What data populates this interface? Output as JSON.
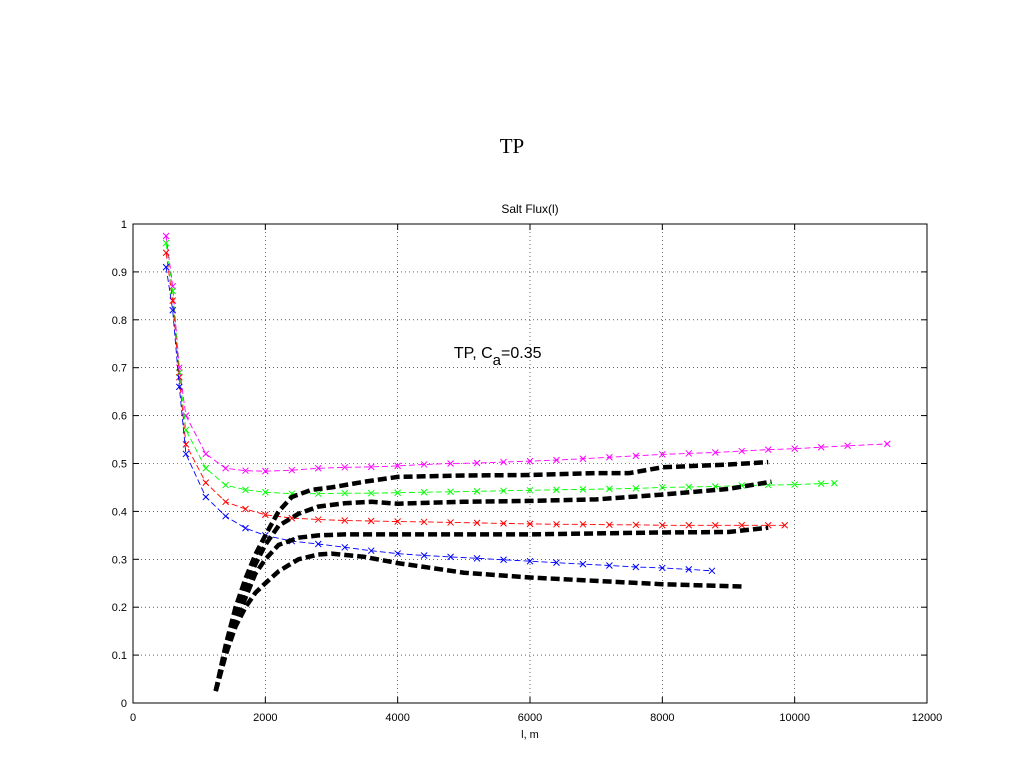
{
  "page_title": "TP",
  "chart_data": {
    "type": "line",
    "title": "Salt Flux(l)",
    "xlabel": "l, m",
    "ylabel": "",
    "xlim": [
      0,
      12000
    ],
    "ylim": [
      0,
      1
    ],
    "xticks": [
      0,
      2000,
      4000,
      6000,
      8000,
      10000,
      12000
    ],
    "yticks": [
      0,
      0.1,
      0.2,
      0.3,
      0.4,
      0.5,
      0.6,
      0.7,
      0.8,
      0.9,
      1
    ],
    "xtick_labels": [
      "0",
      "2000",
      "4000",
      "6000",
      "8000",
      "10000",
      "12000"
    ],
    "ytick_labels": [
      "0",
      "0.1",
      "0.2",
      "0.3",
      "0.4",
      "0.5",
      "0.6",
      "0.7",
      "0.8",
      "0.9",
      "1"
    ],
    "grid": true,
    "annotation": {
      "prefix": "TP,  C",
      "subscript": "a",
      "suffix": "=0.35",
      "x": 5000,
      "y": 0.72
    },
    "series": [
      {
        "color": "#ff00ff",
        "style": "dashed-x",
        "x": [
          500,
          600,
          700,
          800,
          1100,
          1400,
          1700,
          2000,
          2400,
          2800,
          3200,
          3600,
          4000,
          4400,
          4800,
          5200,
          5600,
          6000,
          6400,
          6800,
          7200,
          7600,
          8000,
          8400,
          8800,
          9200,
          9600,
          10000,
          10400,
          10800,
          11400
        ],
        "y": [
          0.975,
          0.87,
          0.7,
          0.6,
          0.52,
          0.49,
          0.485,
          0.484,
          0.486,
          0.49,
          0.492,
          0.493,
          0.495,
          0.498,
          0.5,
          0.501,
          0.503,
          0.505,
          0.507,
          0.51,
          0.513,
          0.516,
          0.519,
          0.521,
          0.523,
          0.526,
          0.529,
          0.531,
          0.534,
          0.537,
          0.541
        ]
      },
      {
        "color": "#00ff00",
        "style": "dashed-x",
        "x": [
          500,
          600,
          700,
          800,
          1100,
          1400,
          1700,
          2000,
          2400,
          2800,
          3200,
          3600,
          4000,
          4400,
          4800,
          5200,
          5600,
          6000,
          6400,
          6800,
          7200,
          7600,
          8000,
          8400,
          8800,
          9200,
          9600,
          10000,
          10400,
          10600
        ],
        "y": [
          0.96,
          0.86,
          0.69,
          0.57,
          0.49,
          0.455,
          0.445,
          0.44,
          0.437,
          0.437,
          0.438,
          0.438,
          0.439,
          0.44,
          0.441,
          0.442,
          0.443,
          0.444,
          0.445,
          0.446,
          0.447,
          0.448,
          0.45,
          0.451,
          0.452,
          0.454,
          0.455,
          0.456,
          0.458,
          0.459
        ]
      },
      {
        "color": "#ff0000",
        "style": "dashed-x",
        "x": [
          500,
          600,
          700,
          800,
          1100,
          1400,
          1700,
          2000,
          2400,
          2800,
          3200,
          3600,
          4000,
          4400,
          4800,
          5200,
          5600,
          6000,
          6400,
          6800,
          7200,
          7600,
          8000,
          8400,
          8800,
          9200,
          9600,
          9850
        ],
        "y": [
          0.94,
          0.84,
          0.68,
          0.54,
          0.46,
          0.42,
          0.405,
          0.393,
          0.386,
          0.383,
          0.381,
          0.38,
          0.379,
          0.378,
          0.377,
          0.376,
          0.375,
          0.374,
          0.373,
          0.373,
          0.372,
          0.372,
          0.371,
          0.371,
          0.371,
          0.371,
          0.371,
          0.371
        ]
      },
      {
        "color": "#0000ff",
        "style": "dashed-x",
        "x": [
          500,
          600,
          700,
          800,
          1100,
          1400,
          1700,
          2000,
          2400,
          2800,
          3200,
          3600,
          4000,
          4400,
          4800,
          5200,
          5600,
          6000,
          6400,
          6800,
          7200,
          7600,
          8000,
          8400,
          8750
        ],
        "y": [
          0.91,
          0.82,
          0.66,
          0.52,
          0.43,
          0.39,
          0.365,
          0.35,
          0.338,
          0.332,
          0.325,
          0.318,
          0.312,
          0.308,
          0.305,
          0.302,
          0.299,
          0.296,
          0.293,
          0.29,
          0.287,
          0.284,
          0.282,
          0.279,
          0.276
        ]
      },
      {
        "color": "#000000",
        "style": "thick-dashed",
        "x": [
          1250,
          1400,
          1550,
          1700,
          1850,
          2000,
          2200,
          2400,
          2700,
          3000,
          3500,
          4000,
          5000,
          6000,
          7000,
          7500,
          8000,
          9000,
          9600
        ],
        "y": [
          0.025,
          0.12,
          0.2,
          0.26,
          0.31,
          0.35,
          0.4,
          0.43,
          0.445,
          0.45,
          0.462,
          0.472,
          0.475,
          0.476,
          0.48,
          0.48,
          0.492,
          0.498,
          0.503
        ]
      },
      {
        "color": "#000000",
        "style": "thick-dashed",
        "x": [
          1250,
          1400,
          1550,
          1700,
          1850,
          2000,
          2200,
          2500,
          2800,
          3200,
          3600,
          4000,
          5000,
          6000,
          7000,
          8000,
          9000,
          9650
        ],
        "y": [
          0.025,
          0.11,
          0.18,
          0.24,
          0.29,
          0.33,
          0.37,
          0.395,
          0.41,
          0.417,
          0.42,
          0.416,
          0.42,
          0.422,
          0.425,
          0.435,
          0.447,
          0.462
        ]
      },
      {
        "color": "#000000",
        "style": "thick-dashed",
        "x": [
          1250,
          1400,
          1550,
          1700,
          1850,
          2000,
          2200,
          2500,
          2800,
          3200,
          4000,
          5000,
          6000,
          7000,
          8000,
          9000,
          9600
        ],
        "y": [
          0.025,
          0.1,
          0.17,
          0.22,
          0.27,
          0.3,
          0.33,
          0.345,
          0.35,
          0.352,
          0.352,
          0.352,
          0.352,
          0.354,
          0.356,
          0.357,
          0.366
        ]
      },
      {
        "color": "#000000",
        "style": "thick-dashed",
        "x": [
          1250,
          1400,
          1550,
          1700,
          1850,
          2000,
          2200,
          2500,
          2800,
          3000,
          3500,
          4000,
          5000,
          6000,
          7000,
          8000,
          8500,
          9250
        ],
        "y": [
          0.025,
          0.1,
          0.16,
          0.2,
          0.23,
          0.25,
          0.275,
          0.3,
          0.31,
          0.312,
          0.305,
          0.292,
          0.272,
          0.262,
          0.255,
          0.248,
          0.246,
          0.243
        ]
      }
    ]
  }
}
